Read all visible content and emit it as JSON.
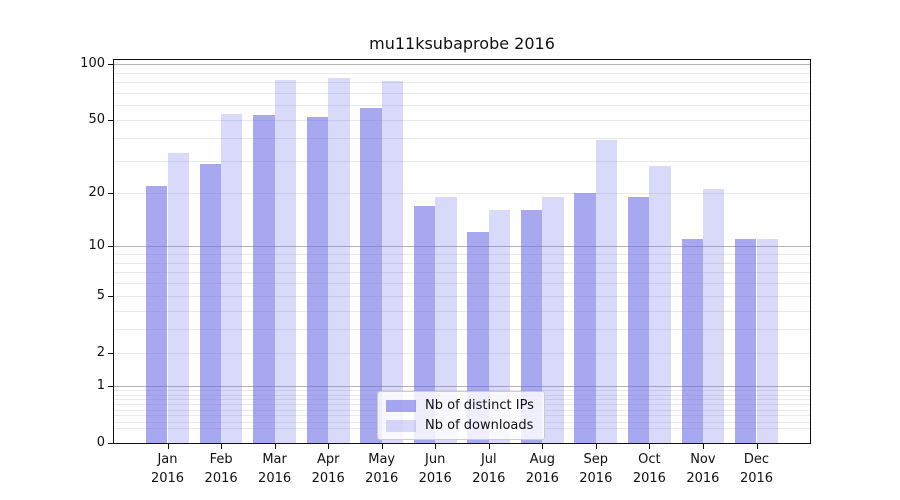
{
  "title": "mu11ksubaprobe 2016",
  "legend": {
    "position": "lower center",
    "items": [
      {
        "label": "Nb of distinct IPs",
        "fill": "rgba(102,102,230,0.57)",
        "base_color": "#6666e6"
      },
      {
        "label": "Nb of downloads",
        "fill": "rgba(102,102,230,0.25)",
        "base_color": "#6666e6"
      }
    ]
  },
  "colors": {
    "major_grid": "#b4b4b4",
    "minor_grid": "#e9e9e9",
    "spine": "#111111",
    "bar_dark_apparent": "#a8a8f0",
    "bar_light_apparent": "#d9d9f8"
  },
  "chart_data": {
    "type": "bar",
    "title": "mu11ksubaprobe 2016",
    "xlabel": "",
    "ylabel": "",
    "categories": [
      "Jan 2016",
      "Feb 2016",
      "Mar 2016",
      "Apr 2016",
      "May 2016",
      "Jun 2016",
      "Jul 2016",
      "Aug 2016",
      "Sep 2016",
      "Oct 2016",
      "Nov 2016",
      "Dec 2016"
    ],
    "series": [
      {
        "name": "Nb of distinct IPs",
        "values": [
          22,
          29,
          53,
          52,
          58,
          17,
          12,
          16,
          20,
          19,
          11,
          11
        ]
      },
      {
        "name": "Nb of downloads",
        "values": [
          33,
          54,
          82,
          84,
          81,
          19,
          16,
          19,
          39,
          28,
          21,
          11
        ]
      }
    ],
    "yscale": "log1p",
    "ylim": [
      0,
      105
    ],
    "yticks": [
      0,
      1,
      2,
      5,
      10,
      20,
      50,
      100
    ],
    "grid_major_values": [
      1,
      10,
      100
    ],
    "grid_minor_values": [
      0.2,
      0.3,
      0.4,
      0.5,
      0.6,
      0.7,
      0.8,
      0.9,
      2,
      3,
      4,
      5,
      6,
      7,
      8,
      9,
      20,
      30,
      40,
      50,
      60,
      70,
      80,
      90
    ],
    "grid": "on",
    "legend_position": "lower center"
  }
}
